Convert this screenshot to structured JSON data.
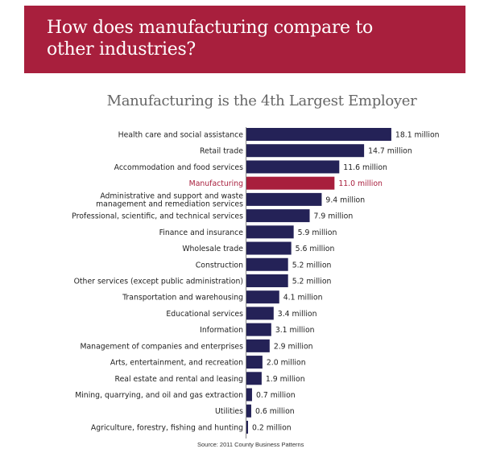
{
  "header": {
    "title": "How does manufacturing compare to other industries?"
  },
  "chart_data": {
    "type": "bar",
    "orientation": "horizontal",
    "title": "Manufacturing is the 4th Largest Employer",
    "unit": "million",
    "categories": [
      "Health care and social assistance",
      "Retail trade",
      "Accommodation and food services",
      "Manufacturing",
      "Administrative and support and waste management and remediation services",
      "Professional, scientific, and technical services",
      "Finance and insurance",
      "Wholesale trade",
      "Construction",
      "Other services (except public administration)",
      "Transportation and warehousing",
      "Educational services",
      "Information",
      "Management of companies and enterprises",
      "Arts, entertainment, and recreation",
      "Real estate and rental and leasing",
      "Mining, quarrying, and oil and gas extraction",
      "Utilities",
      "Agriculture, forestry, fishing and hunting"
    ],
    "values": [
      18.1,
      14.7,
      11.6,
      11.0,
      9.4,
      7.9,
      5.9,
      5.6,
      5.2,
      5.2,
      4.1,
      3.4,
      3.1,
      2.9,
      2.0,
      1.9,
      0.7,
      0.6,
      0.2
    ],
    "data_labels": [
      "18.1 million",
      "14.7 million",
      "11.6 million",
      "11.0 million",
      "9.4 million",
      "7.9 million",
      "5.9 million",
      "5.6 million",
      "5.2 million",
      "5.2 million",
      "4.1 million",
      "3.4 million",
      "3.1 million",
      "2.9 million",
      "2.0 million",
      "1.9 million",
      "0.7 million",
      "0.6 million",
      "0.2 million"
    ],
    "highlight": "Manufacturing",
    "colors": {
      "default": "#242257",
      "highlight": "#a81f3d",
      "banner": "#a81f3d"
    },
    "grid": false,
    "source": "Source: 2011 County Business Patterns"
  }
}
